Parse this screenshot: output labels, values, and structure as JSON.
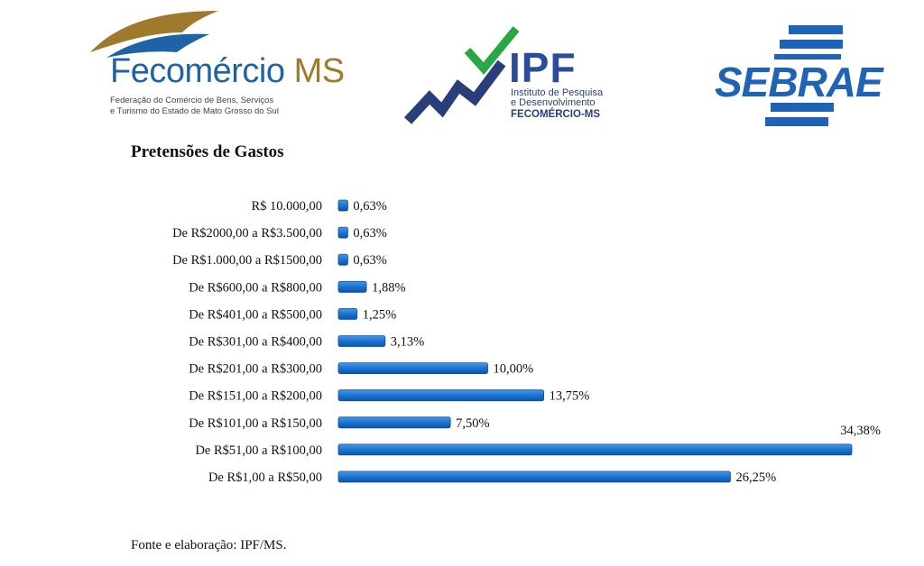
{
  "logos": {
    "fecomercio": {
      "name": "Fecomércio",
      "name_suffix": "MS",
      "subtitle_line1": "Federação do Comércio de Bens, Serviços",
      "subtitle_line2": "e Turismo do Estado de Mato Grosso do Sul"
    },
    "ipf": {
      "name": "IPF",
      "subtitle_line1": "Instituto de Pesquisa",
      "subtitle_line2": "e Desenvolvimento",
      "org": "FECOMÉRCIO-MS"
    },
    "sebrae": {
      "name": "SEBRAE"
    }
  },
  "chart_data": {
    "type": "bar",
    "orientation": "horizontal",
    "title": "Pretensões de Gastos",
    "categories": [
      "R$ 10.000,00",
      "De R$2000,00 a R$3.500,00",
      "De R$1.000,00 a R$1500,00",
      "De R$600,00 a R$800,00",
      "De R$401,00 a R$500,00",
      "De R$301,00 a R$400,00",
      "De R$201,00 a R$300,00",
      "De R$151,00 a R$200,00",
      "De R$101,00 a R$150,00",
      "De R$51,00 a R$100,00",
      "De R$1,00 a R$50,00"
    ],
    "values": [
      0.63,
      0.63,
      0.63,
      1.88,
      1.25,
      3.13,
      10.0,
      13.75,
      7.5,
      34.38,
      26.25
    ],
    "value_labels": [
      "0,63%",
      "0,63%",
      "0,63%",
      "1,88%",
      "1,25%",
      "3,13%",
      "10,00%",
      "13,75%",
      "7,50%",
      "34,38%",
      "26,25%"
    ],
    "unit": "%",
    "xlim": [
      0,
      34.38
    ],
    "bar_color": "#1a73d1",
    "grid": false,
    "legend": "none"
  },
  "source": "Fonte e elaboração: IPF/MS."
}
